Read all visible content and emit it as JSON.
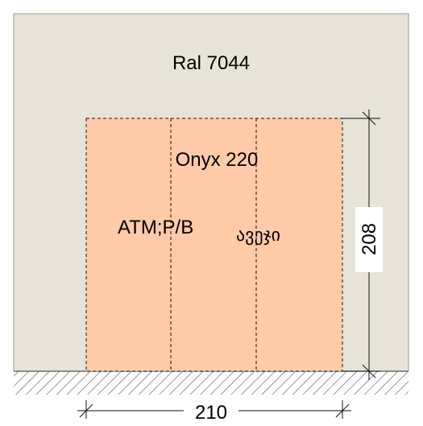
{
  "wall": {
    "label": "Ral 7044",
    "color": "#e8e3d8"
  },
  "panel": {
    "label": "Onyx 220",
    "sublabel": "ATM;P/B",
    "script_label": "ავეჯი",
    "color": "#ffcaa8"
  },
  "dimensions": {
    "width": "210",
    "height": "208"
  },
  "floor": {
    "hatch_color": "#555555"
  }
}
